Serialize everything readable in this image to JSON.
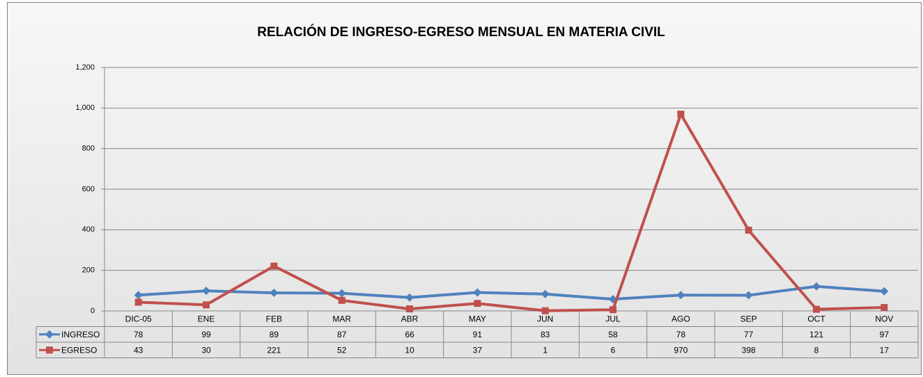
{
  "chart_data": {
    "type": "line",
    "title": "RELACIÓN DE INGRESO-EGRESO MENSUAL EN MATERIA CIVIL",
    "categories": [
      "DIC-05",
      "ENE",
      "FEB",
      "MAR",
      "ABR",
      "MAY",
      "JUN",
      "JUL",
      "AGO",
      "SEP",
      "OCT",
      "NOV"
    ],
    "series": [
      {
        "name": "INGRESO",
        "color": "#4f81bd",
        "marker": "diamond",
        "values": [
          78,
          99,
          89,
          87,
          66,
          91,
          83,
          58,
          78,
          77,
          121,
          97
        ]
      },
      {
        "name": "EGRESO",
        "color": "#c0504d",
        "marker": "square",
        "values": [
          43,
          30,
          221,
          52,
          10,
          37,
          1,
          6,
          970,
          398,
          8,
          17
        ]
      }
    ],
    "ylim": [
      0,
      1200
    ],
    "yticks": [
      0,
      200,
      400,
      600,
      800,
      {
        "value": 1000,
        "label": "1,000"
      },
      {
        "value": 1200,
        "label": "1,200"
      }
    ],
    "grid": true,
    "data_table": true
  }
}
